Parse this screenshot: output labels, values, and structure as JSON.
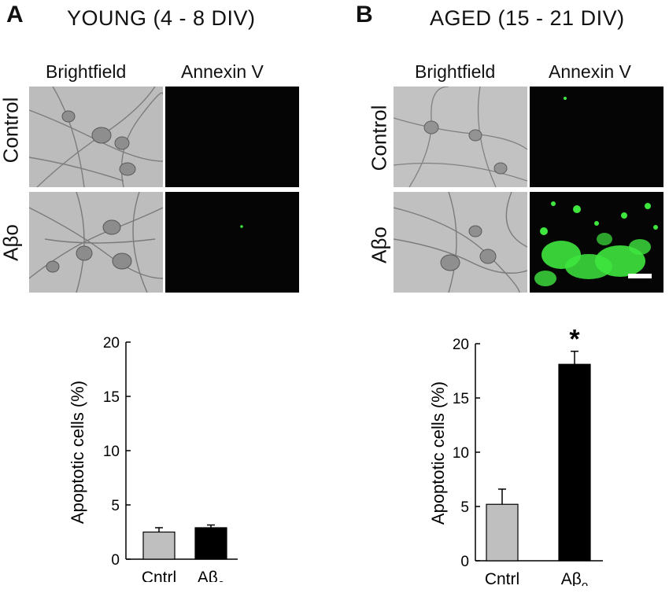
{
  "panels": [
    {
      "letter": "A",
      "title": "YOUNG (4 - 8 DIV)",
      "columns": [
        "Brightfield",
        "Annexin V"
      ],
      "rows": [
        "Control",
        "Aβo"
      ]
    },
    {
      "letter": "B",
      "title": "AGED (15 - 21 DIV)",
      "columns": [
        "Brightfield",
        "Annexin V"
      ],
      "rows": [
        "Control",
        "Aβo"
      ]
    }
  ],
  "colors": {
    "control_bar": "#bfbfbf",
    "abeta_bar": "#000000",
    "annexin_green": "#3ee63e"
  },
  "chart_data": [
    {
      "type": "bar",
      "ylabel": "Apoptotic cells (%)",
      "ylim": [
        0,
        20
      ],
      "yticks": [
        "0",
        "5",
        "10",
        "15",
        "20"
      ],
      "categories": [
        "Cntrl",
        "Aβo"
      ],
      "values": [
        2.5,
        2.9
      ],
      "errors": [
        0.4,
        0.25
      ],
      "bar_colors": [
        "#bfbfbf",
        "#000000"
      ],
      "significance": [
        "",
        ""
      ]
    },
    {
      "type": "bar",
      "ylabel": "Apoptotic cells (%)",
      "ylim": [
        0,
        20
      ],
      "yticks": [
        "0",
        "5",
        "10",
        "15",
        "20"
      ],
      "categories": [
        "Cntrl",
        "Aβo"
      ],
      "values": [
        5.2,
        18.1
      ],
      "errors": [
        1.4,
        1.2
      ],
      "bar_colors": [
        "#bfbfbf",
        "#000000"
      ],
      "significance": [
        "",
        "*"
      ]
    }
  ]
}
